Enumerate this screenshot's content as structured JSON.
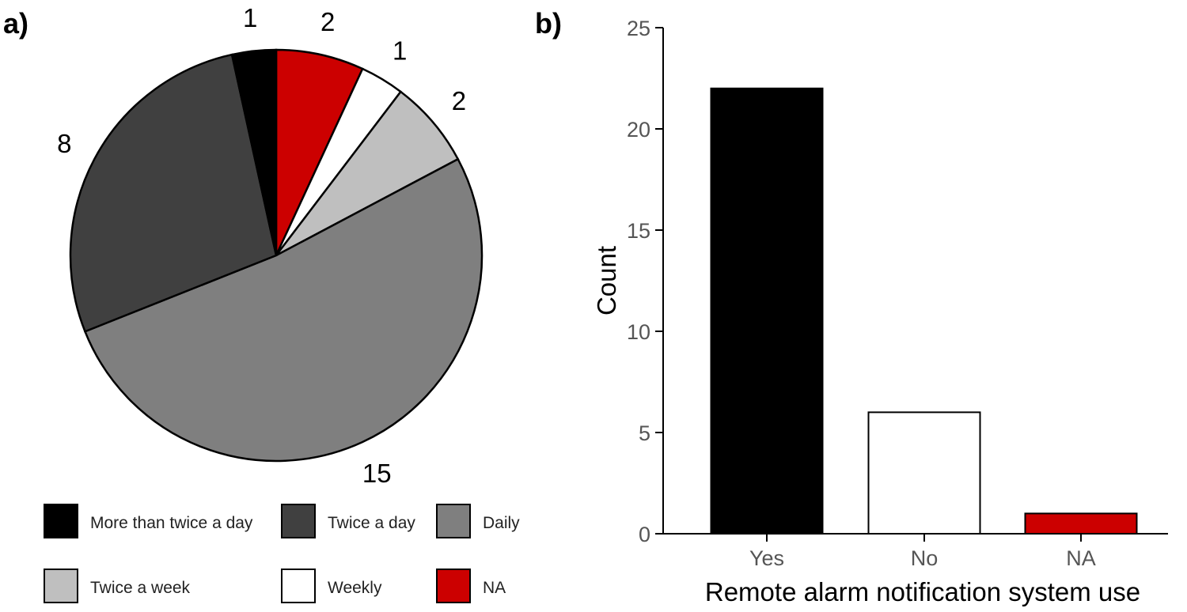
{
  "chart_data": [
    {
      "panel_label": "a)",
      "type": "pie",
      "slices": [
        {
          "label": "NA",
          "value": 2,
          "color": "#cc0000"
        },
        {
          "label": "Weekly",
          "value": 1,
          "color": "#ffffff"
        },
        {
          "label": "Twice a week",
          "value": 2,
          "color": "#bfbfbf"
        },
        {
          "label": "Daily",
          "value": 15,
          "color": "#7f7f7f"
        },
        {
          "label": "Twice a day",
          "value": 8,
          "color": "#404040"
        },
        {
          "label": "More than twice a day",
          "value": 1,
          "color": "#000000"
        }
      ],
      "legend": [
        "More than twice a day",
        "Twice a day",
        "Daily",
        "Twice a week",
        "Weekly",
        "NA"
      ],
      "legend_placement": "bottom",
      "start": "top, clockwise"
    },
    {
      "panel_label": "b)",
      "type": "bar",
      "categories": [
        "Yes",
        "No",
        "NA"
      ],
      "values": [
        22,
        6,
        1
      ],
      "colors": [
        "#000000",
        "#ffffff",
        "#cc0000"
      ],
      "xlabel": "Remote alarm notification system use",
      "ylabel": "Count",
      "ylim": [
        0,
        25
      ],
      "yticks": [
        0,
        5,
        10,
        15,
        20,
        25
      ],
      "grid": false
    }
  ]
}
